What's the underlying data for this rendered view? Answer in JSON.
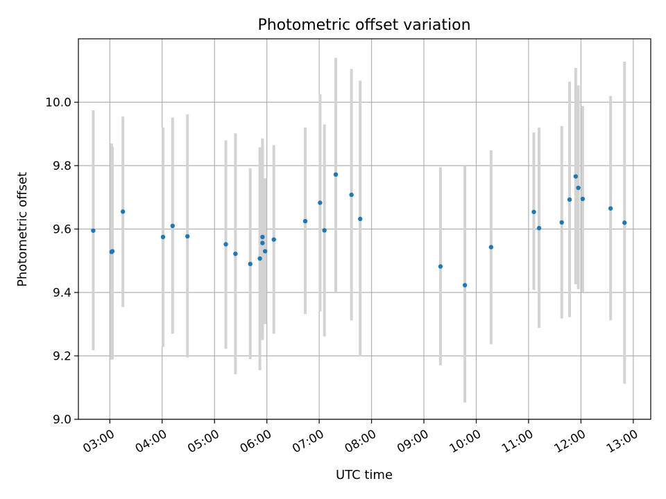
{
  "chart_data": {
    "type": "scatter",
    "title": "Photometric offset variation",
    "xlabel": "UTC time",
    "ylabel": "Photometric offset",
    "xlim": [
      "02:24",
      "13:20"
    ],
    "ylim": [
      9.0,
      10.2
    ],
    "xticks": [
      "03:00",
      "04:00",
      "05:00",
      "06:00",
      "07:00",
      "08:00",
      "09:00",
      "10:00",
      "11:00",
      "12:00",
      "13:00"
    ],
    "yticks": [
      9.0,
      9.2,
      9.4,
      9.6,
      9.8,
      10.0
    ],
    "ytick_labels": [
      "9.0",
      "9.2",
      "9.4",
      "9.6",
      "9.8",
      "10.0"
    ],
    "grid": true,
    "colors": {
      "point": "#1f77b4",
      "errorbar": "#d3d3d3",
      "grid": "#b0b0b0"
    },
    "points": [
      {
        "x": "02:41",
        "y": 9.595,
        "ymin": 9.218,
        "ymax": 9.975
      },
      {
        "x": "03:02",
        "y": 9.528,
        "ymin": 9.188,
        "ymax": 9.87
      },
      {
        "x": "03:03",
        "y": 9.53,
        "ymin": 9.19,
        "ymax": 9.86
      },
      {
        "x": "03:15",
        "y": 9.655,
        "ymin": 9.354,
        "ymax": 9.955
      },
      {
        "x": "04:01",
        "y": 9.575,
        "ymin": 9.228,
        "ymax": 9.92
      },
      {
        "x": "04:12",
        "y": 9.61,
        "ymin": 9.27,
        "ymax": 9.952
      },
      {
        "x": "04:29",
        "y": 9.577,
        "ymin": 9.195,
        "ymax": 9.962
      },
      {
        "x": "05:13",
        "y": 9.552,
        "ymin": 9.222,
        "ymax": 9.88
      },
      {
        "x": "05:24",
        "y": 9.522,
        "ymin": 9.142,
        "ymax": 9.902
      },
      {
        "x": "05:41",
        "y": 9.49,
        "ymin": 9.19,
        "ymax": 9.792
      },
      {
        "x": "05:52",
        "y": 9.507,
        "ymin": 9.155,
        "ymax": 9.858
      },
      {
        "x": "05:55",
        "y": 9.575,
        "ymin": 9.28,
        "ymax": 9.886
      },
      {
        "x": "05:55",
        "y": 9.556,
        "ymin": 9.25,
        "ymax": 9.866
      },
      {
        "x": "05:58",
        "y": 9.53,
        "ymin": 9.3,
        "ymax": 9.76
      },
      {
        "x": "06:08",
        "y": 9.567,
        "ymin": 9.27,
        "ymax": 9.865
      },
      {
        "x": "06:44",
        "y": 9.625,
        "ymin": 9.332,
        "ymax": 9.92
      },
      {
        "x": "07:01",
        "y": 9.683,
        "ymin": 9.34,
        "ymax": 10.025
      },
      {
        "x": "07:06",
        "y": 9.596,
        "ymin": 9.261,
        "ymax": 9.93
      },
      {
        "x": "07:19",
        "y": 9.772,
        "ymin": 9.4,
        "ymax": 10.14
      },
      {
        "x": "07:37",
        "y": 9.708,
        "ymin": 9.312,
        "ymax": 10.105
      },
      {
        "x": "07:47",
        "y": 9.632,
        "ymin": 9.198,
        "ymax": 10.068
      },
      {
        "x": "09:19",
        "y": 9.482,
        "ymin": 9.17,
        "ymax": 9.795
      },
      {
        "x": "09:47",
        "y": 9.423,
        "ymin": 9.053,
        "ymax": 9.798
      },
      {
        "x": "10:17",
        "y": 9.543,
        "ymin": 9.237,
        "ymax": 9.848
      },
      {
        "x": "11:06",
        "y": 9.654,
        "ymin": 9.408,
        "ymax": 9.905
      },
      {
        "x": "11:12",
        "y": 9.603,
        "ymin": 9.288,
        "ymax": 9.92
      },
      {
        "x": "11:38",
        "y": 9.621,
        "ymin": 9.318,
        "ymax": 9.925
      },
      {
        "x": "11:47",
        "y": 9.693,
        "ymin": 9.322,
        "ymax": 10.065
      },
      {
        "x": "11:54",
        "y": 9.766,
        "ymin": 9.426,
        "ymax": 10.108
      },
      {
        "x": "11:57",
        "y": 9.73,
        "ymin": 9.41,
        "ymax": 10.053
      },
      {
        "x": "12:02",
        "y": 9.695,
        "ymin": 9.402,
        "ymax": 9.988
      },
      {
        "x": "12:34",
        "y": 9.665,
        "ymin": 9.312,
        "ymax": 10.02
      },
      {
        "x": "12:50",
        "y": 9.62,
        "ymin": 9.112,
        "ymax": 10.128
      }
    ]
  }
}
